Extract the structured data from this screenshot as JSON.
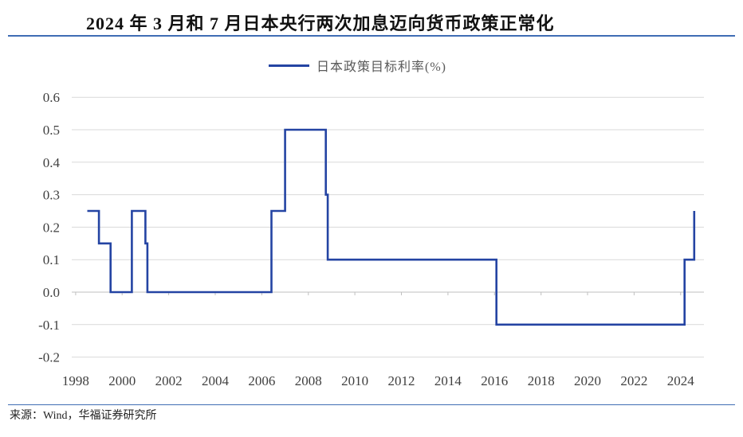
{
  "source": "来源：Wind，华福证券研究所",
  "colors": {
    "rule": "#3F6DB4",
    "grid": "#D9D9D9",
    "text": "#404040"
  },
  "chart_data": {
    "type": "line",
    "step": true,
    "title": "2024 年 3 月和 7 月日本央行两次加息迈向货币政策正常化",
    "xlabel": "",
    "ylabel": "",
    "xlim": [
      "1997-11",
      "2025-01"
    ],
    "ylim": [
      -0.2,
      0.6
    ],
    "x_axis_crosses_y": 0,
    "grid": true,
    "legend": "top-center",
    "x_ticks": [
      "1998",
      "2000",
      "2002",
      "2004",
      "2006",
      "2008",
      "2010",
      "2012",
      "2014",
      "2016",
      "2018",
      "2020",
      "2022",
      "2024"
    ],
    "y_ticks": [
      "0.6",
      "0.5",
      "0.4",
      "0.3",
      "0.2",
      "0.1",
      "0.0",
      "-0.1",
      "-0.2"
    ],
    "series": [
      {
        "name": "日本政策目标利率(%)",
        "color": "#2444A3",
        "points": [
          {
            "date": "1998-07",
            "value": 0.25
          },
          {
            "date": "1999-01",
            "value": 0.15
          },
          {
            "date": "1999-07",
            "value": 0.0
          },
          {
            "date": "2000-06",
            "value": 0.25
          },
          {
            "date": "2001-01",
            "value": 0.15
          },
          {
            "date": "2001-02",
            "value": 0.0
          },
          {
            "date": "2006-06",
            "value": 0.25
          },
          {
            "date": "2007-01",
            "value": 0.5
          },
          {
            "date": "2008-10",
            "value": 0.3
          },
          {
            "date": "2008-11",
            "value": 0.1
          },
          {
            "date": "2016-02",
            "value": -0.1
          },
          {
            "date": "2024-03",
            "value": 0.1
          },
          {
            "date": "2024-08",
            "value": 0.25
          }
        ]
      }
    ]
  }
}
